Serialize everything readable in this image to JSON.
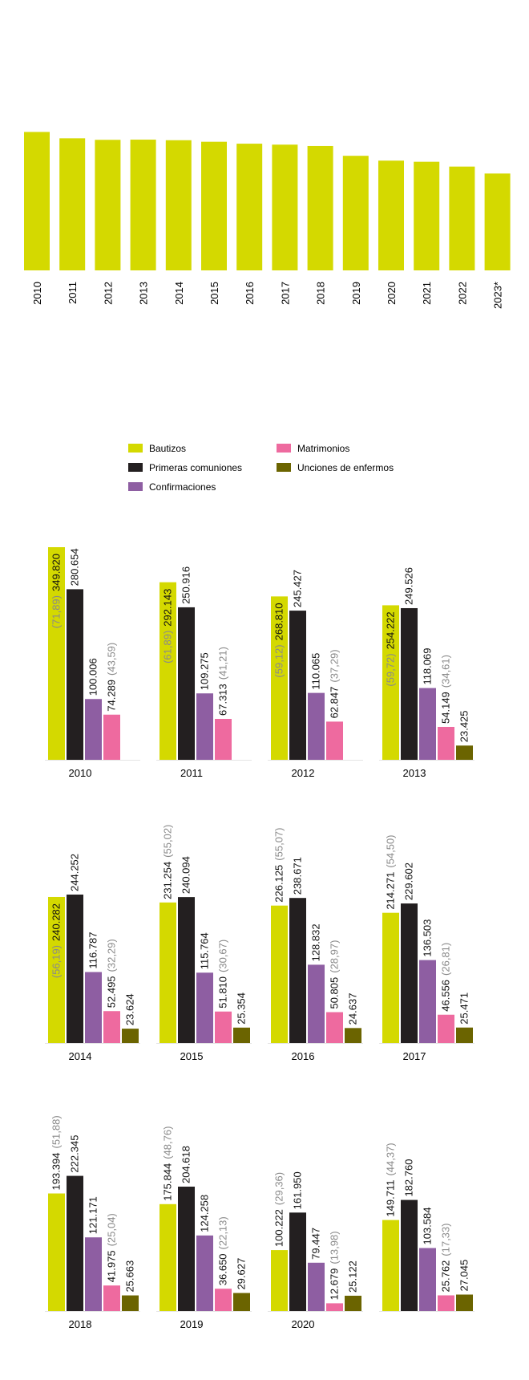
{
  "colors": {
    "bautizos": "#d4d900",
    "primeras_comuniones": "#231f20",
    "confirmaciones": "#8e5ea2",
    "matrimonios": "#ee6a9f",
    "unciones": "#6b6400",
    "paren_text": "#8a8a8a"
  },
  "legend": {
    "items": [
      {
        "key": "bautizos",
        "label": "Bautizos"
      },
      {
        "key": "primeras_comuniones",
        "label": "Primeras comuniones"
      },
      {
        "key": "confirmaciones",
        "label": "Confirmaciones"
      },
      {
        "key": "matrimonios",
        "label": "Matrimonios"
      },
      {
        "key": "unciones",
        "label": "Unciones de enfermos"
      }
    ]
  },
  "chart_data": [
    {
      "type": "bar",
      "categories": [
        "2010",
        "2011",
        "2012",
        "2013",
        "2014",
        "2015",
        "2016",
        "2017",
        "2018",
        "2019",
        "2020",
        "2021",
        "2022",
        "2023*"
      ],
      "values": [
        71.89,
        68.6,
        67.8,
        67.9,
        67.6,
        66.8,
        65.8,
        65.3,
        64.6,
        59.5,
        57.0,
        56.4,
        53.9,
        50.3
      ],
      "ylim": [
        0,
        75
      ],
      "grid": false,
      "legend": "none"
    },
    {
      "type": "bar",
      "legend": "top",
      "series_keys": [
        "bautizos",
        "primeras_comuniones",
        "confirmaciones",
        "matrimonios",
        "unciones"
      ],
      "groups": [
        {
          "year": "2010",
          "bars": [
            "349.820",
            "280.654",
            "100.006",
            "74.289",
            ""
          ],
          "values": [
            349820,
            280654,
            100006,
            74289,
            null
          ],
          "parens": [
            "(71,89)",
            "",
            "",
            "(43,59)",
            ""
          ]
        },
        {
          "year": "2011",
          "bars": [
            "292.143",
            "250.916",
            "109.275",
            "67.313",
            ""
          ],
          "values": [
            292143,
            250916,
            109275,
            67313,
            null
          ],
          "parens": [
            "(61,89)",
            "",
            "",
            "(41,21)",
            ""
          ]
        },
        {
          "year": "2012",
          "bars": [
            "268.810",
            "245.427",
            "110.065",
            "62.847",
            ""
          ],
          "values": [
            268810,
            245427,
            110065,
            62847,
            null
          ],
          "parens": [
            "(59,12)",
            "",
            "",
            "(37,29)",
            ""
          ]
        },
        {
          "year": "2013",
          "bars": [
            "254.222",
            "249.526",
            "118.069",
            "54.149",
            "23.425"
          ],
          "values": [
            254222,
            249526,
            118069,
            54149,
            23425
          ],
          "parens": [
            "(59,72)",
            "",
            "",
            "(34,61)",
            ""
          ]
        },
        {
          "year": "2014",
          "bars": [
            "240.282",
            "244.252",
            "116.787",
            "52.495",
            "23.624"
          ],
          "values": [
            240282,
            244252,
            116787,
            52495,
            23624
          ],
          "parens": [
            "(56,19)",
            "",
            "",
            "(32,29)",
            ""
          ]
        },
        {
          "year": "2015",
          "bars": [
            "231.254",
            "240.094",
            "115.764",
            "51.810",
            "25.354"
          ],
          "values": [
            231254,
            240094,
            115764,
            51810,
            25354
          ],
          "parens": [
            "(55,02)",
            "",
            "",
            "(30,67)",
            ""
          ]
        },
        {
          "year": "2016",
          "bars": [
            "226.125",
            "238.671",
            "128.832",
            "50.805",
            "24.637"
          ],
          "values": [
            226125,
            238671,
            128832,
            50805,
            24637
          ],
          "parens": [
            "(55,07)",
            "",
            "",
            "(28,97)",
            ""
          ]
        },
        {
          "year": "2017",
          "bars": [
            "214.271",
            "229.602",
            "136.503",
            "46.556",
            "25.471"
          ],
          "values": [
            214271,
            229602,
            136503,
            46556,
            25471
          ],
          "parens": [
            "(54,50)",
            "",
            "",
            "(26,81)",
            ""
          ]
        },
        {
          "year": "2018",
          "bars": [
            "193.394",
            "222.345",
            "121.171",
            "41.975",
            "25.663"
          ],
          "values": [
            193394,
            222345,
            121171,
            41975,
            25663
          ],
          "parens": [
            "(51,88)",
            "",
            "",
            "(25,04)",
            ""
          ]
        },
        {
          "year": "2019",
          "bars": [
            "175.844",
            "204.618",
            "124.258",
            "36.650",
            "29.627"
          ],
          "values": [
            175844,
            204618,
            124258,
            36650,
            29627
          ],
          "parens": [
            "(48,76)",
            "",
            "",
            "(22,13)",
            ""
          ]
        },
        {
          "year": "2020",
          "bars": [
            "100.222",
            "161.950",
            "79.447",
            "12.679",
            "25.122"
          ],
          "values": [
            100222,
            161950,
            79447,
            12679,
            25122
          ],
          "parens": [
            "(29,36)",
            "",
            "",
            "(13,98)",
            ""
          ]
        },
        {
          "year": "",
          "bars": [
            "149.711",
            "182.760",
            "103.584",
            "25.762",
            "27.045"
          ],
          "values": [
            149711,
            182760,
            103584,
            25762,
            27045
          ],
          "parens": [
            "(44,37)",
            "",
            "",
            "(17,33)",
            ""
          ]
        }
      ]
    }
  ]
}
